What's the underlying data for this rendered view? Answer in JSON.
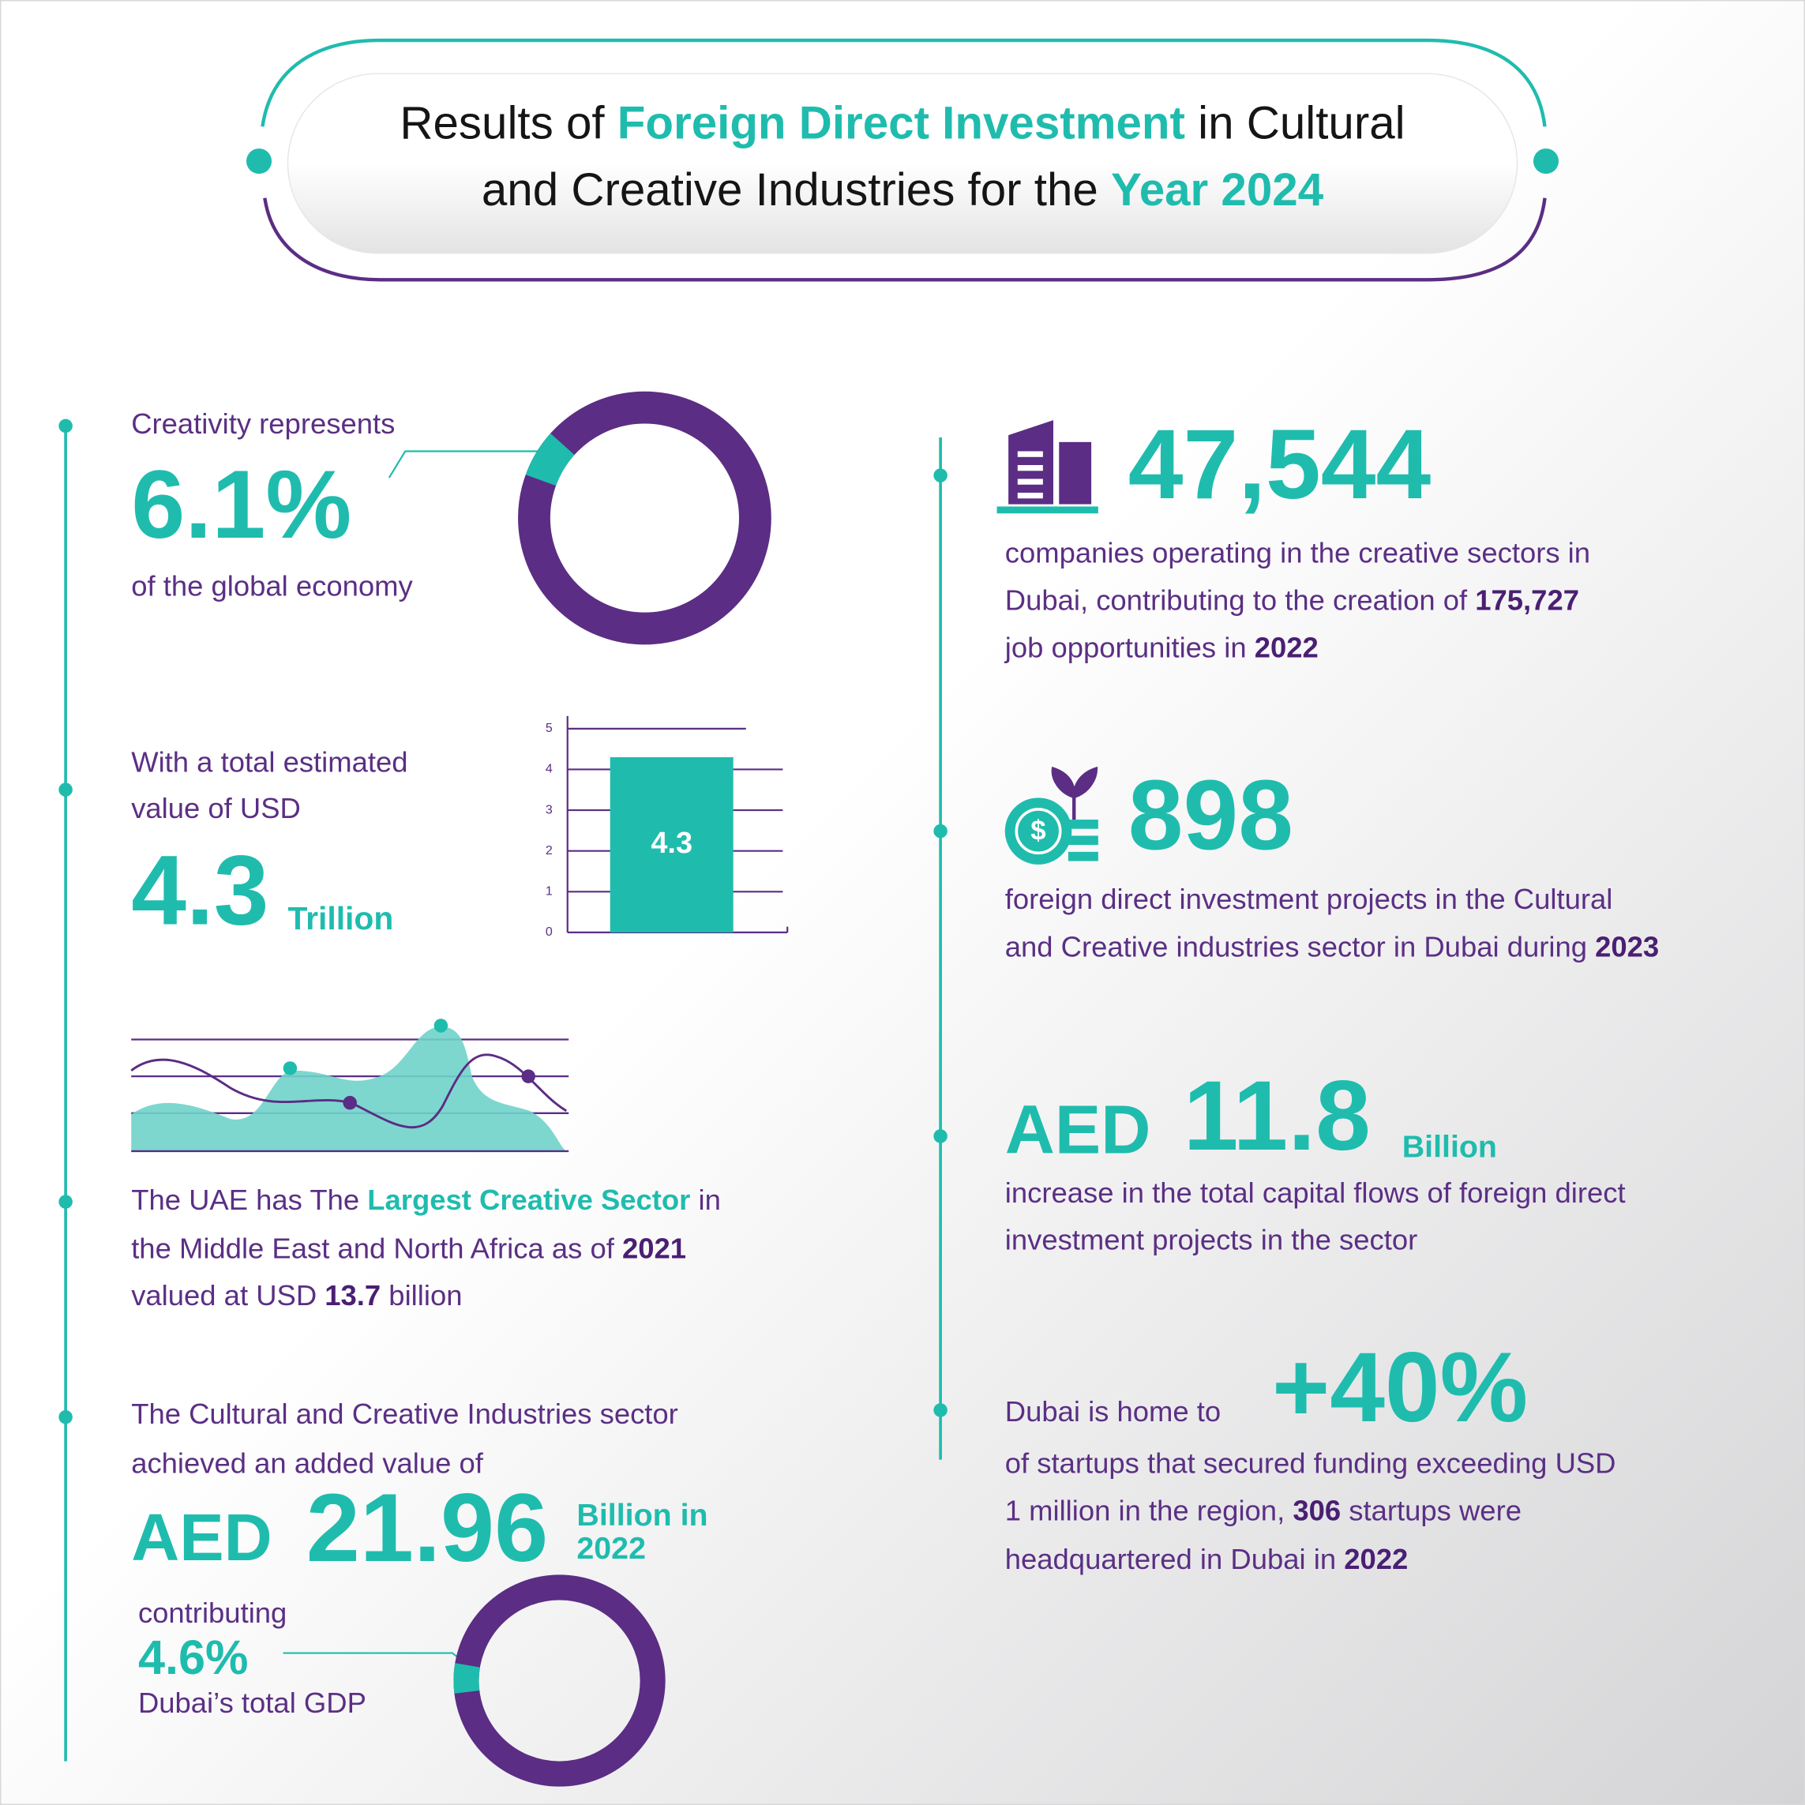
{
  "header": {
    "title": [
      [
        "Results of ",
        "Foreign Direct Investment",
        " in Cultural"
      ],
      [
        "and Creative Industries for the ",
        "Year 2024"
      ]
    ]
  },
  "left": {
    "global_share": {
      "intro": "Creativity represents",
      "value": 6.1,
      "value_label": "6.1%",
      "caption": "of the global economy"
    },
    "global_value": {
      "intro": [
        "With a total estimated",
        "value of USD"
      ],
      "value": 4.3,
      "unit": "Trillion",
      "chart": {
        "ylim": [
          0,
          5
        ],
        "yticks": [
          0,
          1,
          2,
          3,
          4,
          5
        ]
      }
    },
    "largest_sector": {
      "lines": [
        [
          "The UAE has The ",
          "Largest Creative Sector",
          " in"
        ],
        [
          "the Middle East and North Africa as of ",
          "2021"
        ],
        [
          "valued at USD ",
          "13.7",
          " billion"
        ]
      ]
    },
    "added_value": {
      "intro": [
        "The Cultural and Creative Industries sector",
        "achieved an added value of"
      ],
      "currency": "AED",
      "amount": "21.96",
      "suffix": [
        "Billion in",
        "2022"
      ],
      "contributing": "contributing",
      "share": 4.6,
      "share_label": "4.6%",
      "share_caption": "Dubai’s total GDP"
    }
  },
  "right": {
    "companies": {
      "value": "47,544",
      "lines": [
        [
          "companies operating in the creative sectors in"
        ],
        [
          "Dubai, contributing to the creation of ",
          "175,727"
        ],
        [
          "job opportunities in ",
          "2022"
        ]
      ]
    },
    "projects": {
      "value": "898",
      "lines": [
        [
          "foreign direct investment projects in the Cultural"
        ],
        [
          "and Creative industries sector in Dubai during ",
          "2023"
        ]
      ]
    },
    "capital": {
      "currency": "AED",
      "value": "11.8",
      "unit": "Billion",
      "lines": [
        [
          "increase in the total capital flows of foreign direct"
        ],
        [
          "investment projects in the sector"
        ]
      ]
    },
    "startups": {
      "intro": "Dubai is home to",
      "value": "+40%",
      "lines": [
        [
          "of startups that secured funding exceeding USD"
        ],
        [
          "1 million in the region, ",
          "306",
          " startups were"
        ],
        [
          "headquartered in Dubai in ",
          "2022"
        ]
      ]
    }
  }
}
